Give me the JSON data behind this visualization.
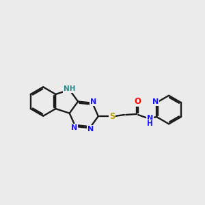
{
  "bg_color": "#ebebeb",
  "bond_color": "#1a1a1a",
  "bond_width": 1.7,
  "atom_colors": {
    "N": "#1414ff",
    "NH_indole": "#2a8a8a",
    "S": "#b8a000",
    "O": "#ff0000",
    "C": "#1a1a1a"
  },
  "font_size": 8.5
}
